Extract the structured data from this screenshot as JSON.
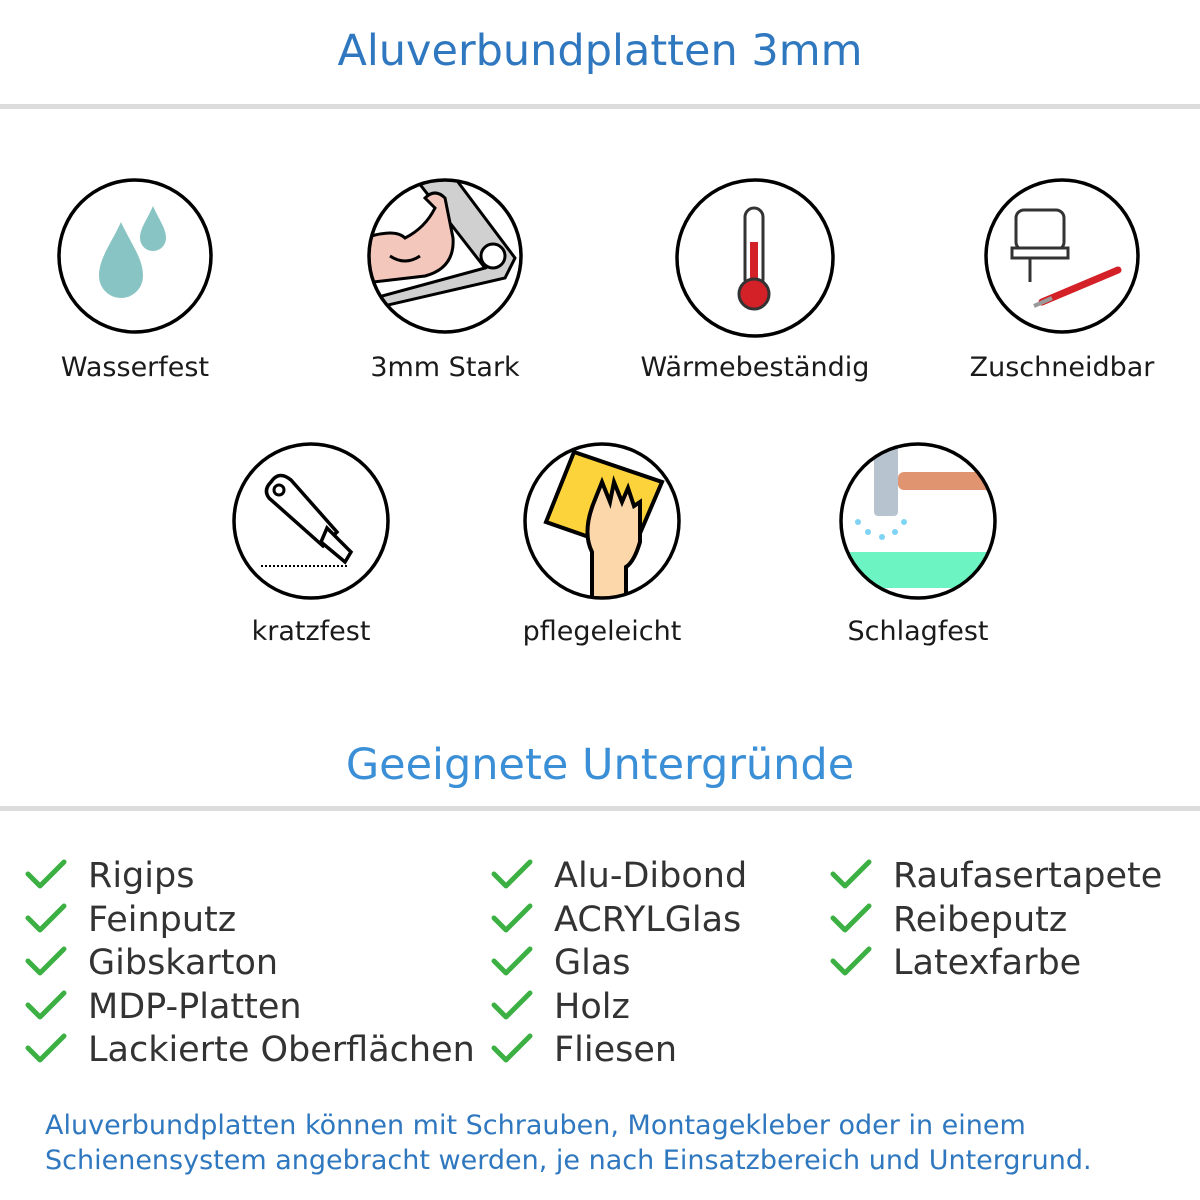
{
  "title": "Aluverbundplatten 3mm",
  "features": [
    {
      "label": "Wasserfest",
      "icon": "water-drops-icon"
    },
    {
      "label": "3mm Stark",
      "icon": "flexed-arm-icon"
    },
    {
      "label": "Wärmebeständig",
      "icon": "thermometer-icon"
    },
    {
      "label": "Zuschneidbar",
      "icon": "jigsaw-icon"
    },
    {
      "label": "kratzfest",
      "icon": "cutter-knife-icon"
    },
    {
      "label": "pflegeleicht",
      "icon": "hand-cloth-icon"
    },
    {
      "label": "Schlagfest",
      "icon": "hammer-icon"
    }
  ],
  "surfaces_title": "Geeignete Untergründe",
  "surfaces": [
    [
      "Rigips",
      "Feinputz",
      "Gibskarton",
      "MDP-Platten",
      "Lackierte Oberflächen"
    ],
    [
      "Alu-Dibond",
      "ACRYLGlas",
      "Glas",
      "Holz",
      "Fliesen"
    ],
    [
      "Raufasertapete",
      "Reibeputz",
      "Latexfarbe"
    ]
  ],
  "footer": [
    "Aluverbundplatten können mit Schrauben, Montagekleber oder in einem",
    "Schienensystem angebracht werden, je nach Einsatzbereich und Untergrund."
  ],
  "colors": {
    "heading": "#2f78bf",
    "check": "#3cb043",
    "drop": "#88c4c3"
  }
}
